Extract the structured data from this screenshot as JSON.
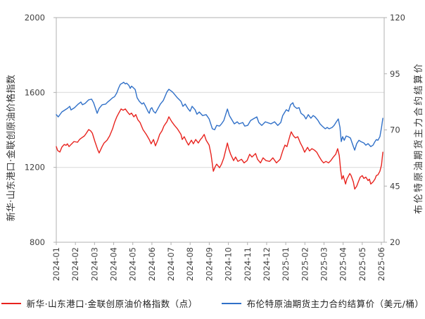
{
  "chart_data": {
    "type": "line",
    "title": "",
    "background_color": "#ffffff",
    "frame_color": "#b0b0b0",
    "grid_color": "#d9d9d9",
    "left_axis": {
      "label": "新华·山东港口·金联创原油价格指数",
      "min": 800,
      "max": 2000,
      "ticks": [
        2000,
        1600,
        1200,
        800
      ],
      "grid_at": [
        1600,
        1200
      ]
    },
    "right_axis": {
      "label": "布伦特原油期货主力合约结算价",
      "min": 20,
      "max": 120,
      "ticks": [
        120,
        95,
        70,
        45,
        20
      ]
    },
    "x_axis": {
      "tick_labels": [
        "2024-01",
        "2024-02",
        "2024-03",
        "2024-04",
        "2024-05",
        "2024-06",
        "2024-07",
        "2024-08",
        "2024-09",
        "2024-10",
        "2024-11",
        "2024-12",
        "2025-01",
        "2025-02",
        "2025-03",
        "2025-04",
        "2025-05",
        "2025-06"
      ]
    },
    "series": [
      {
        "name": "新华·山东港口·金联创原油价格指数（点）",
        "unit": "点",
        "axis": "left",
        "color": "#e8231e",
        "points": [
          [
            0.0,
            1311
          ],
          [
            0.004,
            1290
          ],
          [
            0.011,
            1282
          ],
          [
            0.017,
            1308
          ],
          [
            0.024,
            1322
          ],
          [
            0.03,
            1318
          ],
          [
            0.034,
            1326
          ],
          [
            0.039,
            1311
          ],
          [
            0.045,
            1322
          ],
          [
            0.054,
            1338
          ],
          [
            0.065,
            1334
          ],
          [
            0.071,
            1349
          ],
          [
            0.077,
            1357
          ],
          [
            0.086,
            1368
          ],
          [
            0.092,
            1383
          ],
          [
            0.099,
            1402
          ],
          [
            0.105,
            1395
          ],
          [
            0.11,
            1383
          ],
          [
            0.118,
            1338
          ],
          [
            0.127,
            1292
          ],
          [
            0.131,
            1277
          ],
          [
            0.14,
            1311
          ],
          [
            0.146,
            1330
          ],
          [
            0.155,
            1345
          ],
          [
            0.163,
            1368
          ],
          [
            0.172,
            1406
          ],
          [
            0.178,
            1440
          ],
          [
            0.185,
            1470
          ],
          [
            0.191,
            1490
          ],
          [
            0.198,
            1512
          ],
          [
            0.204,
            1505
          ],
          [
            0.211,
            1512
          ],
          [
            0.217,
            1497
          ],
          [
            0.224,
            1482
          ],
          [
            0.23,
            1490
          ],
          [
            0.237,
            1470
          ],
          [
            0.243,
            1482
          ],
          [
            0.249,
            1455
          ],
          [
            0.256,
            1440
          ],
          [
            0.265,
            1402
          ],
          [
            0.275,
            1376
          ],
          [
            0.284,
            1349
          ],
          [
            0.29,
            1326
          ],
          [
            0.297,
            1349
          ],
          [
            0.303,
            1315
          ],
          [
            0.31,
            1345
          ],
          [
            0.316,
            1376
          ],
          [
            0.323,
            1395
          ],
          [
            0.329,
            1421
          ],
          [
            0.338,
            1444
          ],
          [
            0.344,
            1470
          ],
          [
            0.353,
            1444
          ],
          [
            0.361,
            1425
          ],
          [
            0.37,
            1406
          ],
          [
            0.381,
            1376
          ],
          [
            0.385,
            1349
          ],
          [
            0.391,
            1364
          ],
          [
            0.398,
            1338
          ],
          [
            0.404,
            1319
          ],
          [
            0.413,
            1345
          ],
          [
            0.419,
            1326
          ],
          [
            0.426,
            1349
          ],
          [
            0.434,
            1330
          ],
          [
            0.441,
            1350
          ],
          [
            0.445,
            1357
          ],
          [
            0.452,
            1376
          ],
          [
            0.458,
            1345
          ],
          [
            0.467,
            1319
          ],
          [
            0.473,
            1270
          ],
          [
            0.48,
            1179
          ],
          [
            0.486,
            1205
          ],
          [
            0.49,
            1217
          ],
          [
            0.499,
            1198
          ],
          [
            0.505,
            1217
          ],
          [
            0.512,
            1251
          ],
          [
            0.523,
            1330
          ],
          [
            0.527,
            1300
          ],
          [
            0.533,
            1270
          ],
          [
            0.542,
            1236
          ],
          [
            0.548,
            1255
          ],
          [
            0.555,
            1232
          ],
          [
            0.566,
            1243
          ],
          [
            0.574,
            1224
          ],
          [
            0.583,
            1236
          ],
          [
            0.591,
            1270
          ],
          [
            0.598,
            1255
          ],
          [
            0.609,
            1274
          ],
          [
            0.615,
            1243
          ],
          [
            0.624,
            1224
          ],
          [
            0.632,
            1251
          ],
          [
            0.641,
            1236
          ],
          [
            0.652,
            1232
          ],
          [
            0.662,
            1251
          ],
          [
            0.673,
            1224
          ],
          [
            0.684,
            1243
          ],
          [
            0.692,
            1288
          ],
          [
            0.699,
            1319
          ],
          [
            0.705,
            1311
          ],
          [
            0.714,
            1368
          ],
          [
            0.718,
            1390
          ],
          [
            0.725,
            1368
          ],
          [
            0.731,
            1357
          ],
          [
            0.738,
            1364
          ],
          [
            0.746,
            1330
          ],
          [
            0.753,
            1307
          ],
          [
            0.759,
            1281
          ],
          [
            0.768,
            1307
          ],
          [
            0.774,
            1288
          ],
          [
            0.781,
            1300
          ],
          [
            0.789,
            1292
          ],
          [
            0.796,
            1281
          ],
          [
            0.802,
            1262
          ],
          [
            0.811,
            1236
          ],
          [
            0.817,
            1224
          ],
          [
            0.824,
            1232
          ],
          [
            0.832,
            1224
          ],
          [
            0.839,
            1236
          ],
          [
            0.845,
            1251
          ],
          [
            0.854,
            1270
          ],
          [
            0.86,
            1300
          ],
          [
            0.865,
            1262
          ],
          [
            0.869,
            1186
          ],
          [
            0.873,
            1137
          ],
          [
            0.877,
            1156
          ],
          [
            0.884,
            1111
          ],
          [
            0.888,
            1137
          ],
          [
            0.897,
            1167
          ],
          [
            0.901,
            1156
          ],
          [
            0.908,
            1122
          ],
          [
            0.912,
            1084
          ],
          [
            0.918,
            1099
          ],
          [
            0.923,
            1122
          ],
          [
            0.929,
            1148
          ],
          [
            0.935,
            1156
          ],
          [
            0.94,
            1141
          ],
          [
            0.946,
            1148
          ],
          [
            0.953,
            1129
          ],
          [
            0.957,
            1137
          ],
          [
            0.961,
            1111
          ],
          [
            0.968,
            1122
          ],
          [
            0.974,
            1137
          ],
          [
            0.978,
            1156
          ],
          [
            0.983,
            1160
          ],
          [
            0.989,
            1179
          ],
          [
            0.994,
            1213
          ],
          [
            0.998,
            1281
          ]
        ]
      },
      {
        "name": "布伦特原油期货主力合约结算价（美元/桶）",
        "unit": "美元/桶",
        "axis": "right",
        "color": "#3070c8",
        "points": [
          [
            0.0,
            76.8
          ],
          [
            0.006,
            75.8
          ],
          [
            0.017,
            78.0
          ],
          [
            0.034,
            79.6
          ],
          [
            0.041,
            80.5
          ],
          [
            0.045,
            78.9
          ],
          [
            0.056,
            79.9
          ],
          [
            0.067,
            81.5
          ],
          [
            0.075,
            82.4
          ],
          [
            0.08,
            81.2
          ],
          [
            0.088,
            81.8
          ],
          [
            0.099,
            83.4
          ],
          [
            0.108,
            83.7
          ],
          [
            0.114,
            82.1
          ],
          [
            0.125,
            77.4
          ],
          [
            0.131,
            79.6
          ],
          [
            0.14,
            81.2
          ],
          [
            0.151,
            81.5
          ],
          [
            0.157,
            82.4
          ],
          [
            0.166,
            83.5
          ],
          [
            0.172,
            84.3
          ],
          [
            0.178,
            84.8
          ],
          [
            0.185,
            86.5
          ],
          [
            0.191,
            88.8
          ],
          [
            0.196,
            90.3
          ],
          [
            0.202,
            90.8
          ],
          [
            0.206,
            91.2
          ],
          [
            0.211,
            90.5
          ],
          [
            0.215,
            90.8
          ],
          [
            0.222,
            89.8
          ],
          [
            0.226,
            88.5
          ],
          [
            0.23,
            89.5
          ],
          [
            0.234,
            89.0
          ],
          [
            0.241,
            88.0
          ],
          [
            0.247,
            84.3
          ],
          [
            0.254,
            82.7
          ],
          [
            0.262,
            81.5
          ],
          [
            0.267,
            82.1
          ],
          [
            0.273,
            80.5
          ],
          [
            0.28,
            78.3
          ],
          [
            0.284,
            77.4
          ],
          [
            0.288,
            79.3
          ],
          [
            0.292,
            79.9
          ],
          [
            0.297,
            78.3
          ],
          [
            0.303,
            77.5
          ],
          [
            0.312,
            79.9
          ],
          [
            0.318,
            81.5
          ],
          [
            0.327,
            83.1
          ],
          [
            0.338,
            86.9
          ],
          [
            0.344,
            88.1
          ],
          [
            0.355,
            86.9
          ],
          [
            0.361,
            85.9
          ],
          [
            0.37,
            84.3
          ],
          [
            0.381,
            82.7
          ],
          [
            0.387,
            80.5
          ],
          [
            0.394,
            81.5
          ],
          [
            0.402,
            79.6
          ],
          [
            0.409,
            78.3
          ],
          [
            0.415,
            80.5
          ],
          [
            0.424,
            79.0
          ],
          [
            0.43,
            77.0
          ],
          [
            0.437,
            78.0
          ],
          [
            0.447,
            76.4
          ],
          [
            0.458,
            76.8
          ],
          [
            0.467,
            74.9
          ],
          [
            0.477,
            70.5
          ],
          [
            0.484,
            70.1
          ],
          [
            0.49,
            72.0
          ],
          [
            0.499,
            71.7
          ],
          [
            0.505,
            72.7
          ],
          [
            0.512,
            74.2
          ],
          [
            0.523,
            79.3
          ],
          [
            0.529,
            76.4
          ],
          [
            0.535,
            74.9
          ],
          [
            0.544,
            72.7
          ],
          [
            0.553,
            73.6
          ],
          [
            0.559,
            72.7
          ],
          [
            0.57,
            73.3
          ],
          [
            0.576,
            71.7
          ],
          [
            0.585,
            72.0
          ],
          [
            0.594,
            74.2
          ],
          [
            0.602,
            74.9
          ],
          [
            0.613,
            75.8
          ],
          [
            0.619,
            73.3
          ],
          [
            0.628,
            72.0
          ],
          [
            0.639,
            73.6
          ],
          [
            0.645,
            73.3
          ],
          [
            0.656,
            72.7
          ],
          [
            0.667,
            73.6
          ],
          [
            0.677,
            72.0
          ],
          [
            0.686,
            73.3
          ],
          [
            0.692,
            76.4
          ],
          [
            0.703,
            79.0
          ],
          [
            0.71,
            78.3
          ],
          [
            0.716,
            81.2
          ],
          [
            0.723,
            82.1
          ],
          [
            0.727,
            80.5
          ],
          [
            0.735,
            79.6
          ],
          [
            0.742,
            79.9
          ],
          [
            0.748,
            77.4
          ],
          [
            0.757,
            76.4
          ],
          [
            0.763,
            74.9
          ],
          [
            0.77,
            76.8
          ],
          [
            0.778,
            75.2
          ],
          [
            0.785,
            76.4
          ],
          [
            0.791,
            75.8
          ],
          [
            0.8,
            74.2
          ],
          [
            0.806,
            72.7
          ],
          [
            0.813,
            71.7
          ],
          [
            0.822,
            70.5
          ],
          [
            0.828,
            71.1
          ],
          [
            0.834,
            70.5
          ],
          [
            0.843,
            71.1
          ],
          [
            0.849,
            72.0
          ],
          [
            0.856,
            73.6
          ],
          [
            0.862,
            74.9
          ],
          [
            0.867,
            71.1
          ],
          [
            0.871,
            64.8
          ],
          [
            0.875,
            67.0
          ],
          [
            0.88,
            65.4
          ],
          [
            0.886,
            67.3
          ],
          [
            0.892,
            67.0
          ],
          [
            0.899,
            66.4
          ],
          [
            0.908,
            62.6
          ],
          [
            0.912,
            61.0
          ],
          [
            0.918,
            63.9
          ],
          [
            0.925,
            65.4
          ],
          [
            0.931,
            64.8
          ],
          [
            0.94,
            64.2
          ],
          [
            0.946,
            63.2
          ],
          [
            0.953,
            63.9
          ],
          [
            0.961,
            62.6
          ],
          [
            0.968,
            63.2
          ],
          [
            0.974,
            64.8
          ],
          [
            0.978,
            65.7
          ],
          [
            0.983,
            65.4
          ],
          [
            0.989,
            67.0
          ],
          [
            0.994,
            71.1
          ],
          [
            0.998,
            75.2
          ]
        ]
      }
    ]
  },
  "legend": {
    "items": [
      {
        "label": "新华·山东港口·金联创原油价格指数（点）",
        "color": "#e8231e"
      },
      {
        "label": "布伦特原油期货主力合约结算价（美元/桶）",
        "color": "#3070c8"
      }
    ]
  }
}
